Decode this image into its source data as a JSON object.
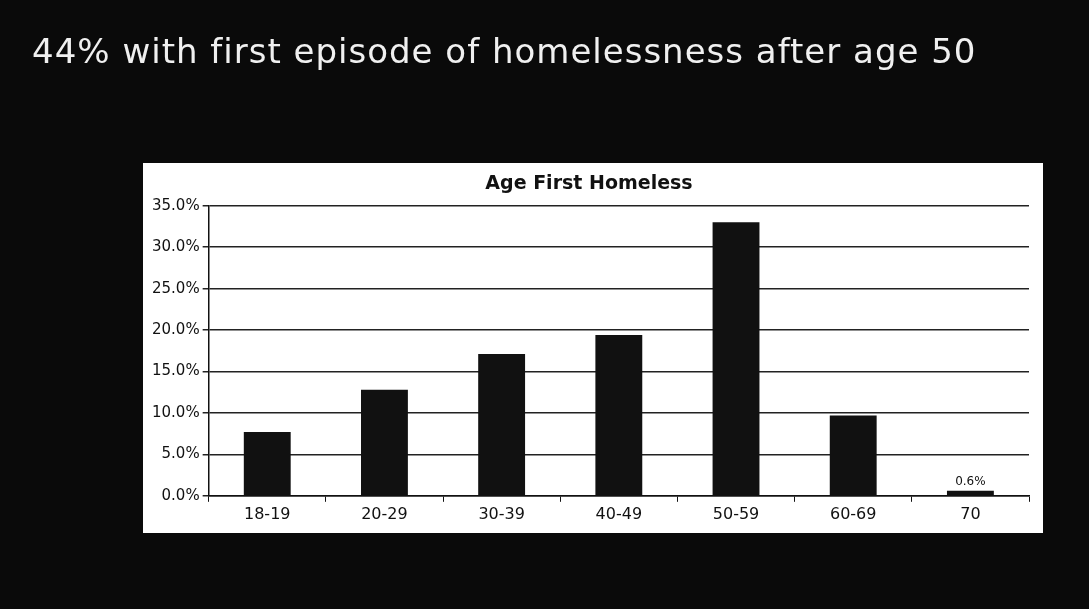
{
  "chart_data": {
    "type": "bar",
    "title": "44% with first episode of homelessness after age 50",
    "subtitle": "Age First Homeless",
    "categories": [
      "18-19",
      "20-29",
      "30-39",
      "40-49",
      "50-59",
      "60-69",
      "70"
    ],
    "values": [
      7.7,
      12.8,
      17.1,
      19.4,
      33.0,
      9.7,
      0.6
    ],
    "value_labels": [
      null,
      null,
      null,
      null,
      null,
      null,
      "0.6%"
    ],
    "color": "#111111",
    "ylim": [
      0,
      35
    ],
    "yticks": [
      {
        "value": 0,
        "label": "0.0%"
      },
      {
        "value": 5,
        "label": "5.0%"
      },
      {
        "value": 10,
        "label": "10.0%"
      },
      {
        "value": 15,
        "label": "15.0%"
      },
      {
        "value": 20,
        "label": "20.0%"
      },
      {
        "value": 25,
        "label": "25.0%"
      },
      {
        "value": 30,
        "label": "30.0%"
      },
      {
        "value": 35,
        "label": "35.0%"
      }
    ],
    "grid": "y",
    "legend": false
  }
}
